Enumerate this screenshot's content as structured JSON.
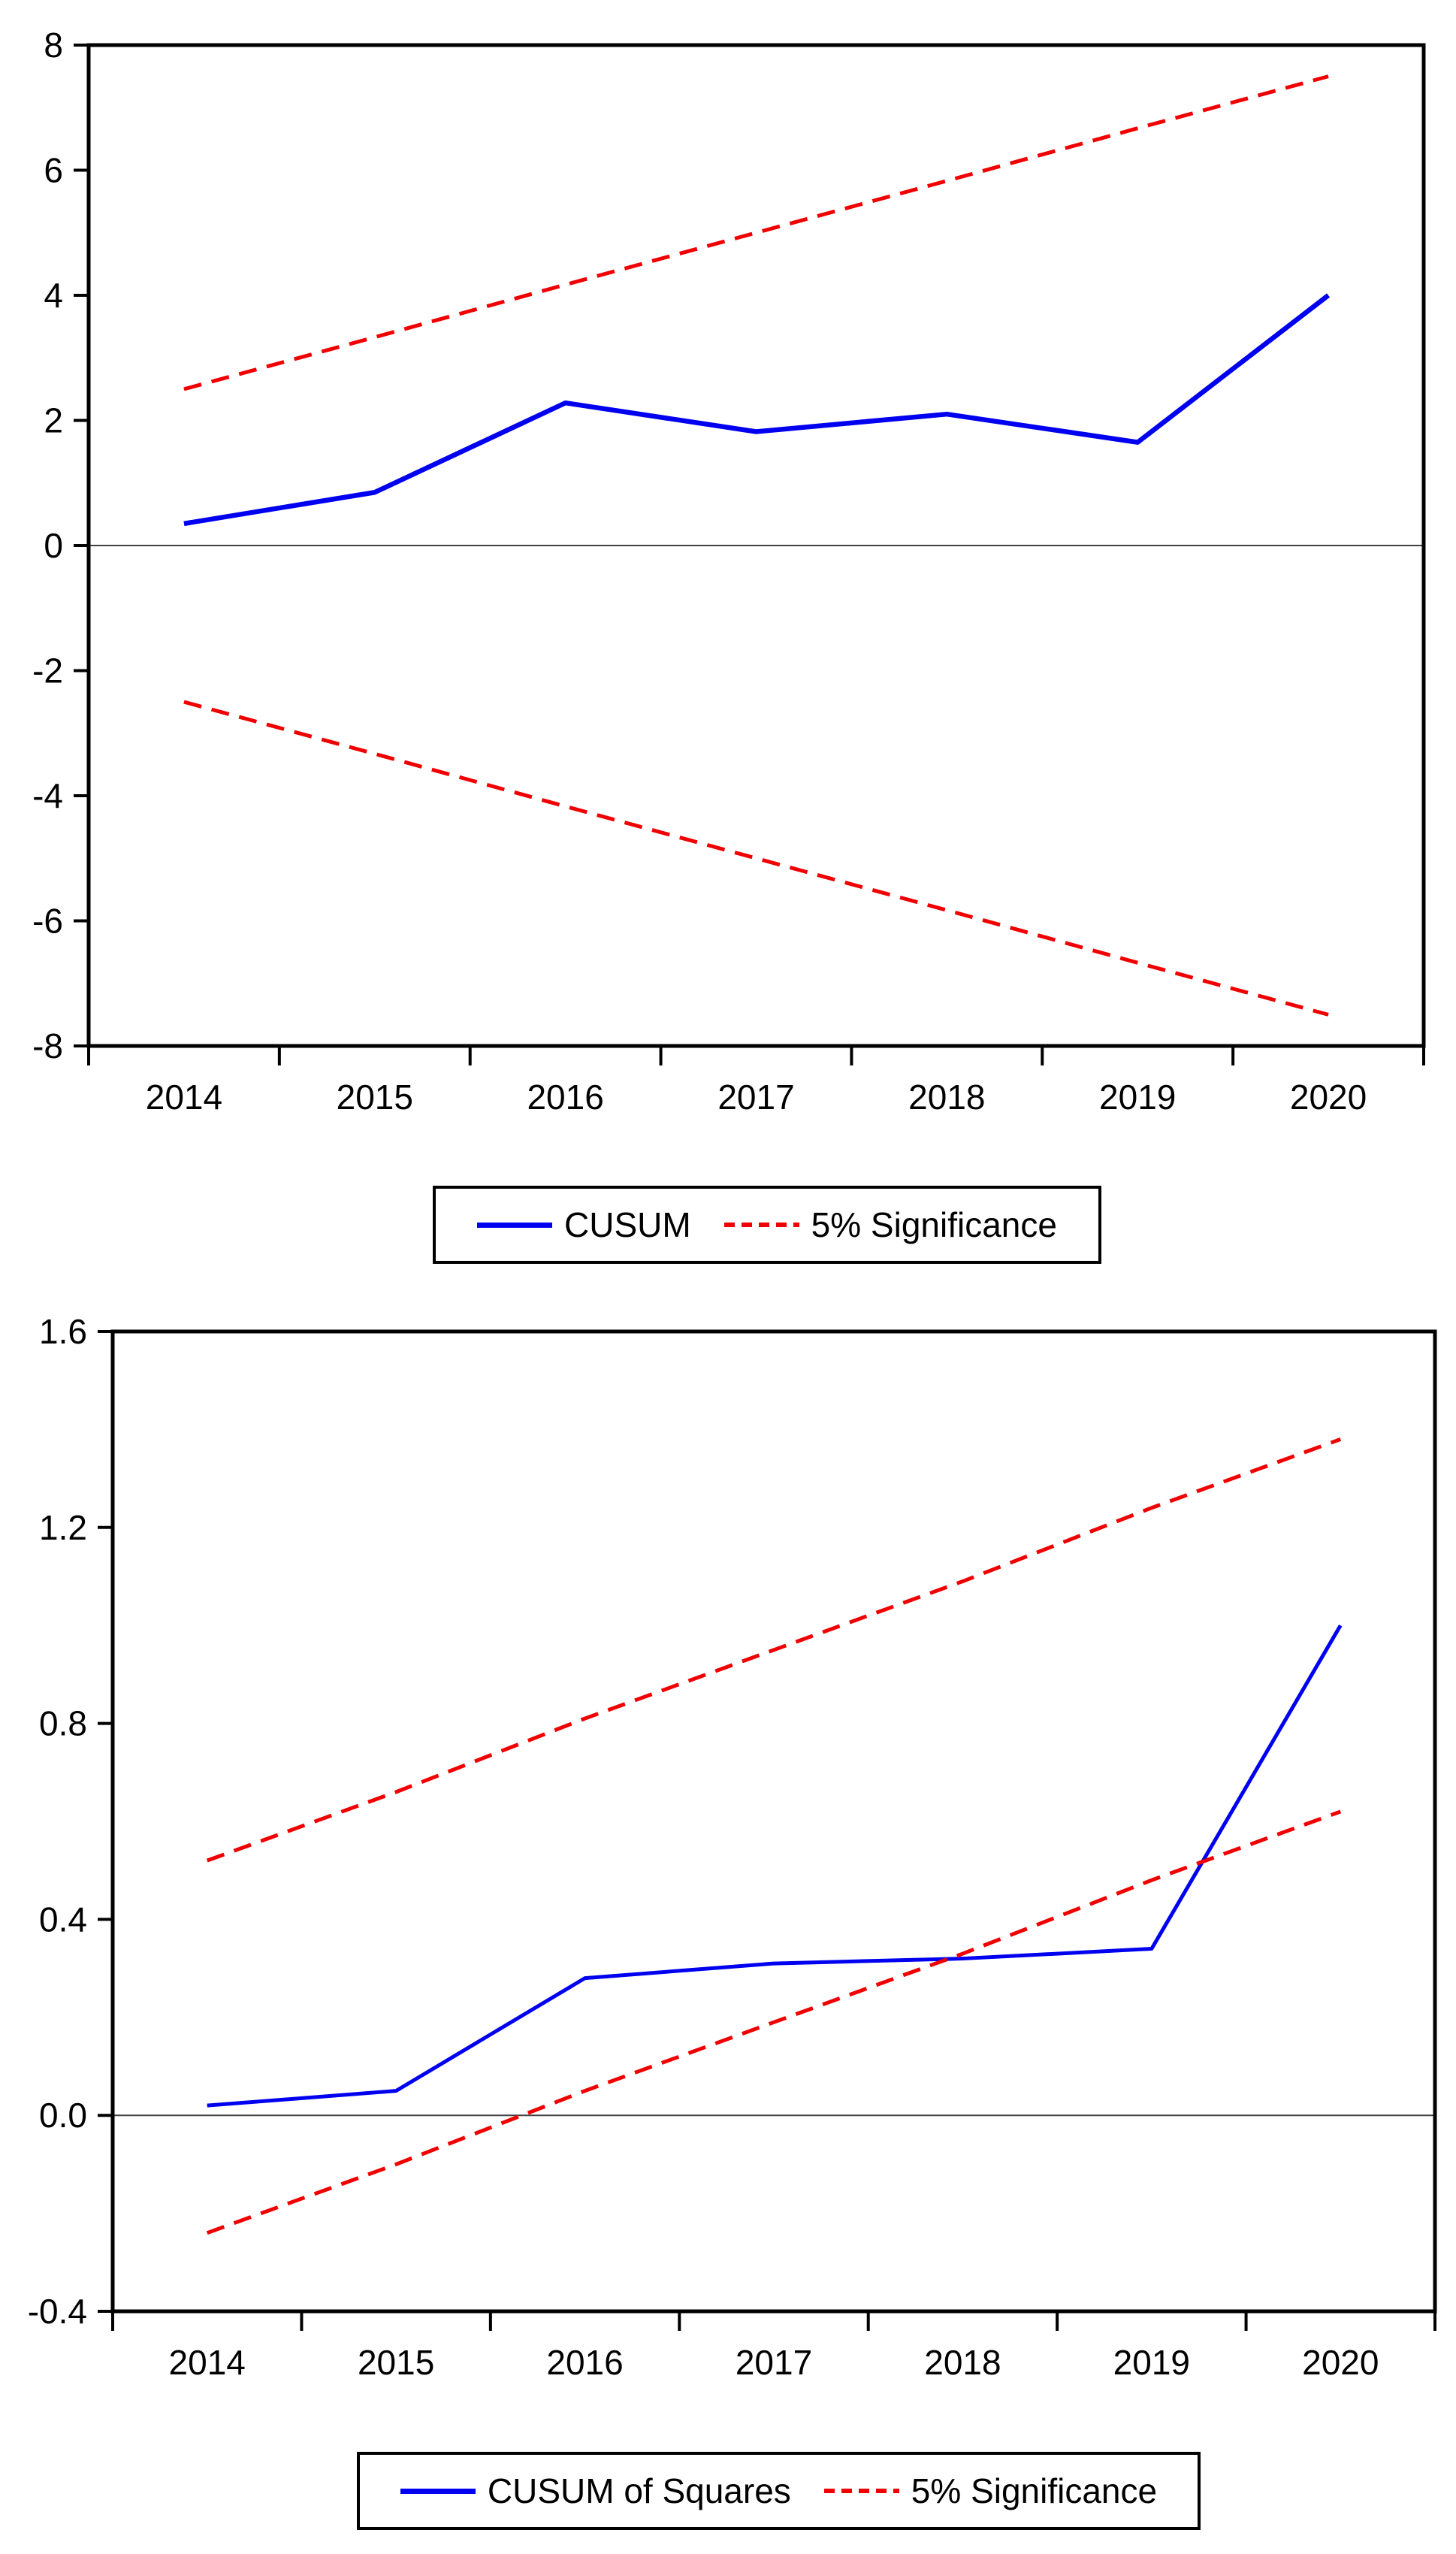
{
  "page": {
    "background": "#ffffff"
  },
  "colors": {
    "line_blue": "#0000f0",
    "significance_red": "#f00000",
    "axis": "#000000",
    "zero_line": "#404040"
  },
  "chart_data": [
    {
      "type": "line",
      "title": "",
      "xlabel": "",
      "ylabel": "",
      "x": [
        2014,
        2015,
        2016,
        2017,
        2018,
        2019,
        2020
      ],
      "categories": [
        "2014",
        "2015",
        "2016",
        "2017",
        "2018",
        "2019",
        "2020"
      ],
      "xlim": [
        2013.5,
        2020.5
      ],
      "ylim": [
        -8,
        8
      ],
      "yticks": [
        8,
        6,
        4,
        2,
        0,
        -2,
        -4,
        -6,
        -8
      ],
      "ytick_labels": [
        "8",
        "6",
        "4",
        "2",
        "0",
        "-2",
        "-4",
        "-6",
        "-8"
      ],
      "xticks": [
        2013.5,
        2014.5,
        2015.5,
        2016.5,
        2017.5,
        2018.5,
        2019.5,
        2020.5
      ],
      "grid": false,
      "zero_line": true,
      "series": [
        {
          "id": "cusum",
          "name": "CUSUM",
          "color": "#0000f0",
          "dash": null,
          "width": 6.5,
          "values": [
            0.35,
            0.85,
            2.28,
            1.82,
            2.1,
            1.65,
            4.0
          ]
        },
        {
          "id": "sig-upper",
          "name": "5% Significance (upper)",
          "color": "#f00000",
          "dash": "24 14",
          "width": 5,
          "values": [
            2.5,
            3.33,
            4.17,
            5.0,
            5.83,
            6.67,
            7.5
          ]
        },
        {
          "id": "sig-lower",
          "name": "5% Significance (lower)",
          "color": "#f00000",
          "dash": "24 14",
          "width": 5,
          "values": [
            -2.5,
            -3.33,
            -4.17,
            -5.0,
            -5.83,
            -6.67,
            -7.5
          ]
        }
      ],
      "legend": {
        "position": "bottom-center",
        "entries": [
          {
            "label": "CUSUM",
            "style": "solid-blue"
          },
          {
            "label": "5% Significance",
            "style": "dashed-red"
          }
        ]
      }
    },
    {
      "type": "line",
      "title": "",
      "xlabel": "",
      "ylabel": "",
      "x": [
        2014,
        2015,
        2016,
        2017,
        2018,
        2019,
        2020
      ],
      "categories": [
        "2014",
        "2015",
        "2016",
        "2017",
        "2018",
        "2019",
        "2020"
      ],
      "xlim": [
        2013.5,
        2020.5
      ],
      "ylim": [
        -0.4,
        1.6
      ],
      "yticks": [
        1.6,
        1.2,
        0.8,
        0.4,
        0.0,
        -0.4
      ],
      "ytick_labels": [
        "1.6",
        "1.2",
        "0.8",
        "0.4",
        "0.0",
        "-0.4"
      ],
      "xticks": [
        2013.5,
        2014.5,
        2015.5,
        2016.5,
        2017.5,
        2018.5,
        2019.5,
        2020.5
      ],
      "grid": false,
      "zero_line": true,
      "series": [
        {
          "id": "cusumsq",
          "name": "CUSUM of Squares",
          "color": "#0000f0",
          "dash": null,
          "width": 5,
          "values": [
            0.02,
            0.05,
            0.28,
            0.31,
            0.32,
            0.34,
            1.0
          ]
        },
        {
          "id": "sig-upper",
          "name": "5% Significance (upper)",
          "color": "#f00000",
          "dash": "24 14",
          "width": 5,
          "values": [
            0.52,
            0.66,
            0.81,
            0.95,
            1.09,
            1.24,
            1.38
          ]
        },
        {
          "id": "sig-lower",
          "name": "5% Significance (lower)",
          "color": "#f00000",
          "dash": "24 14",
          "width": 5,
          "values": [
            -0.24,
            -0.1,
            0.05,
            0.19,
            0.33,
            0.48,
            0.62
          ]
        }
      ],
      "legend": {
        "position": "bottom-center",
        "entries": [
          {
            "label": "CUSUM of Squares",
            "style": "solid-blue"
          },
          {
            "label": "5% Significance",
            "style": "dashed-red"
          }
        ]
      }
    }
  ]
}
